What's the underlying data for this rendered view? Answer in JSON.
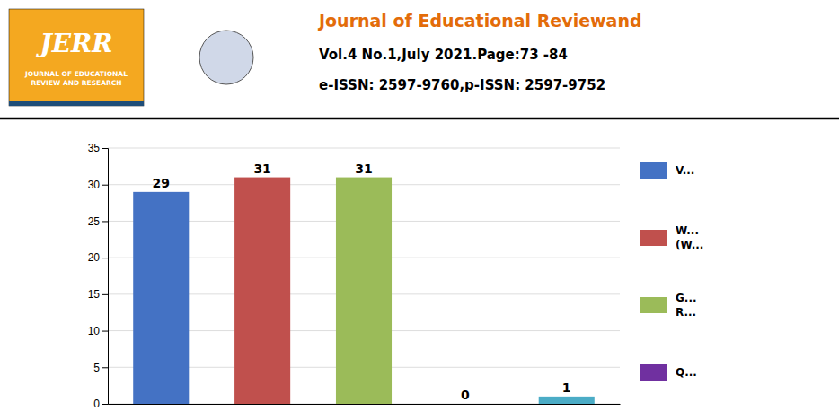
{
  "chart_data": {
    "type": "bar",
    "title": "Journal of Educational Reviewand",
    "subtitle": "Vol.4 No.1,July 2021.Page:73 -84",
    "annotations": [
      "e-ISSN: 2597-9760,p-ISSN: 2597-9752",
      "JERR",
      "JOURNAL OF EDUCATIONAL\nREVIEW AND RESEARCH"
    ],
    "categories": [
      null,
      null,
      null,
      null,
      null
    ],
    "values": [
      29,
      31,
      31,
      0,
      1
    ],
    "colors": [
      "#4472C4",
      "#C0504D",
      "#9BBB59",
      "#808080",
      "#4BACC6"
    ],
    "data_labels": true,
    "ylim": [
      0,
      35
    ],
    "yticks": [
      0,
      5,
      10,
      15,
      20,
      25,
      30,
      35
    ],
    "grid": true,
    "tick_labels": "y",
    "legend": "right",
    "legend_entries": [
      {
        "name": "V...",
        "color": "#4472C4"
      },
      {
        "name": "W...\n(W...",
        "color": "#C0504D"
      },
      {
        "name": "G...\nR...",
        "color": "#9BBB59"
      },
      {
        "name": "Q...",
        "color": "#7030A0"
      }
    ]
  }
}
